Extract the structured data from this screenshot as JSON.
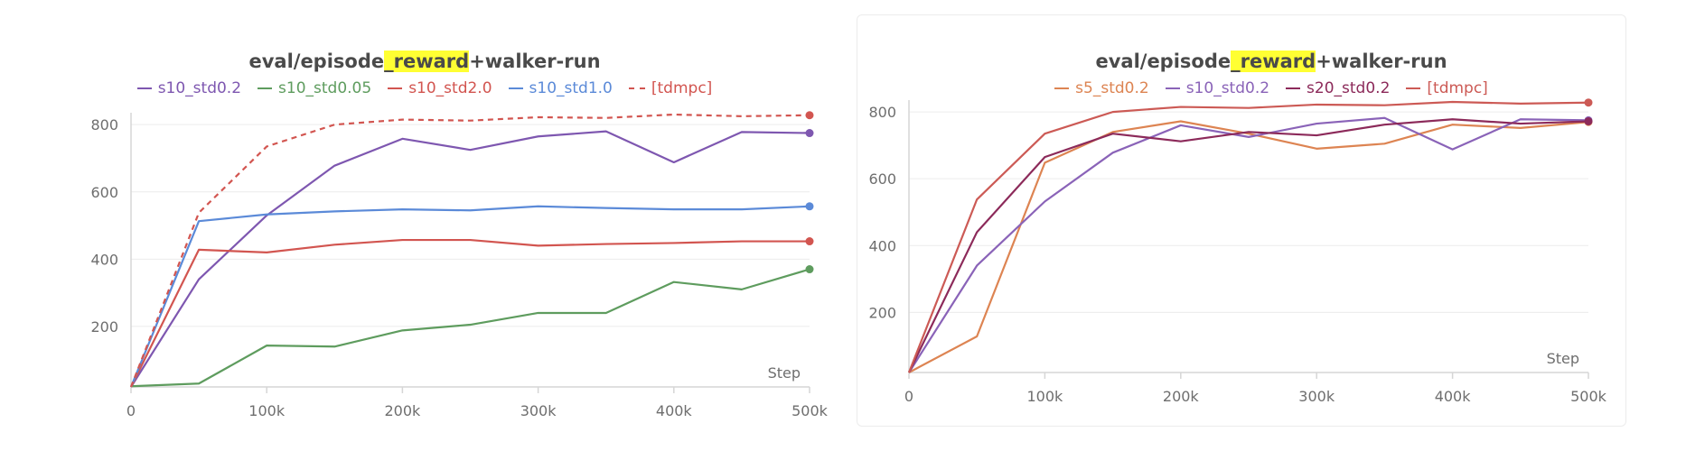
{
  "chart_data": [
    {
      "type": "line",
      "title_prefix": "eval/episode",
      "title_highlight": "_reward",
      "title_suffix": "+walker-run",
      "xlabel": "Step",
      "x_ticks": [
        "0",
        "100k",
        "200k",
        "300k",
        "400k",
        "500k"
      ],
      "y_ticks": [
        "200",
        "400",
        "600",
        "800"
      ],
      "xlim": [
        0,
        500000
      ],
      "ylim": [
        20,
        830
      ],
      "x": [
        0,
        50000,
        100000,
        150000,
        200000,
        250000,
        300000,
        350000,
        400000,
        450000,
        500000
      ],
      "series": [
        {
          "name": "s10_std0.2",
          "color": "#7e57b0",
          "dashed": false,
          "values": [
            20,
            340,
            530,
            678,
            758,
            725,
            765,
            780,
            688,
            778,
            775
          ]
        },
        {
          "name": "s10_std0.05",
          "color": "#5e9c5e",
          "dashed": false,
          "values": [
            22,
            30,
            143,
            140,
            188,
            205,
            240,
            240,
            332,
            310,
            370
          ]
        },
        {
          "name": "s10_std2.0",
          "color": "#d25550",
          "dashed": false,
          "values": [
            20,
            428,
            420,
            443,
            457,
            457,
            440,
            445,
            448,
            453,
            453
          ]
        },
        {
          "name": "s10_std1.0",
          "color": "#5b8ad8",
          "dashed": false,
          "values": [
            20,
            513,
            533,
            542,
            548,
            545,
            557,
            552,
            548,
            548,
            557
          ]
        },
        {
          "name": "[tdmpc]",
          "color": "#d25550",
          "dashed": true,
          "values": [
            20,
            538,
            735,
            800,
            815,
            812,
            822,
            820,
            830,
            825,
            828
          ]
        }
      ]
    },
    {
      "type": "line",
      "title_prefix": "eval/episode",
      "title_highlight": "_reward",
      "title_suffix": "+walker-run",
      "xlabel": "Step",
      "x_ticks": [
        "0",
        "100k",
        "200k",
        "300k",
        "400k",
        "500k"
      ],
      "y_ticks": [
        "200",
        "400",
        "600",
        "800"
      ],
      "xlim": [
        0,
        500000
      ],
      "ylim": [
        20,
        830
      ],
      "x": [
        0,
        50000,
        100000,
        150000,
        200000,
        250000,
        300000,
        350000,
        400000,
        450000,
        500000
      ],
      "series": [
        {
          "name": "s5_std0.2",
          "color": "#dd8452",
          "dashed": false,
          "values": [
            20,
            128,
            648,
            740,
            772,
            735,
            690,
            705,
            762,
            752,
            770
          ]
        },
        {
          "name": "s10_std0.2",
          "color": "#8a63b8",
          "dashed": false,
          "values": [
            20,
            340,
            532,
            678,
            760,
            725,
            765,
            782,
            688,
            778,
            775
          ]
        },
        {
          "name": "s20_std0.2",
          "color": "#8c2a5a",
          "dashed": false,
          "values": [
            20,
            440,
            665,
            735,
            712,
            740,
            730,
            762,
            778,
            765,
            772
          ]
        },
        {
          "name": "[tdmpc]",
          "color": "#cc5a55",
          "dashed": false,
          "values": [
            20,
            538,
            735,
            800,
            815,
            812,
            822,
            820,
            830,
            825,
            828
          ]
        }
      ]
    }
  ]
}
